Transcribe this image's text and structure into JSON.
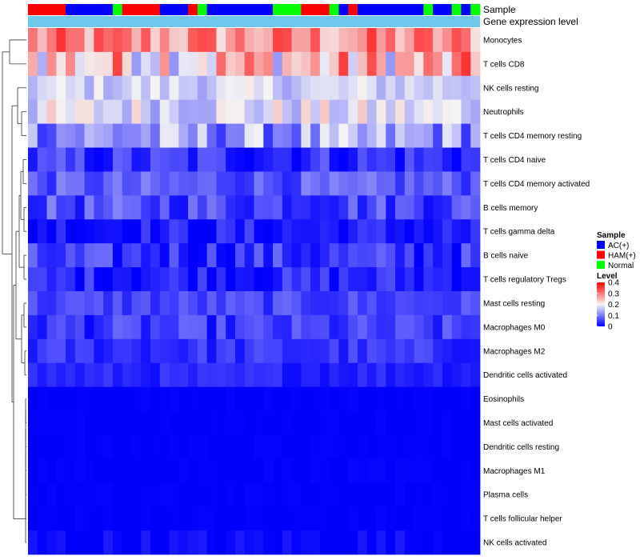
{
  "chart_data": {
    "type": "heatmap",
    "title": "",
    "n_samples": 48,
    "colors": {
      "ac": "#0000ff",
      "ham": "#ff0000",
      "normal": "#00ff00",
      "gene_bar": "#6fc8ec",
      "low": "#0000ff",
      "mid": "#f5f5f5",
      "high": "#ff0000"
    },
    "sample_annotation": {
      "label": "Sample",
      "values": [
        "HAM(+)",
        "HAM(+)",
        "HAM(+)",
        "HAM(+)",
        "AC(+)",
        "AC(+)",
        "AC(+)",
        "AC(+)",
        "AC(+)",
        "Normal",
        "HAM(+)",
        "HAM(+)",
        "HAM(+)",
        "HAM(+)",
        "AC(+)",
        "AC(+)",
        "AC(+)",
        "HAM(+)",
        "Normal",
        "AC(+)",
        "AC(+)",
        "AC(+)",
        "AC(+)",
        "AC(+)",
        "AC(+)",
        "AC(+)",
        "Normal",
        "Normal",
        "Normal",
        "HAM(+)",
        "HAM(+)",
        "HAM(+)",
        "Normal",
        "AC(+)",
        "HAM(+)",
        "AC(+)",
        "AC(+)",
        "AC(+)",
        "AC(+)",
        "AC(+)",
        "AC(+)",
        "AC(+)",
        "Normal",
        "AC(+)",
        "AC(+)",
        "Normal",
        "AC(+)",
        "Normal"
      ]
    },
    "gene_annotation": {
      "label": "Gene expression level"
    },
    "legend": {
      "sample_title": "Sample",
      "sample_entries": [
        {
          "label": "AC(+)",
          "color": "#0000ff"
        },
        {
          "label": "HAM(+)",
          "color": "#ff0000"
        },
        {
          "label": "Normal",
          "color": "#00ff00"
        }
      ],
      "level_title": "Level",
      "level_ticks": [
        "0.4",
        "0.3",
        "0.2",
        "0.1",
        "0"
      ],
      "level_range": [
        0,
        0.4
      ]
    },
    "rows": [
      {
        "name": "Monocytes",
        "base": 0.28,
        "amp": 0.08
      },
      {
        "name": "T cells CD8",
        "base": 0.24,
        "amp": 0.12
      },
      {
        "name": "NK cells resting",
        "base": 0.17,
        "amp": 0.04
      },
      {
        "name": "Neutrophils",
        "base": 0.18,
        "amp": 0.06
      },
      {
        "name": "T cells CD4 memory resting",
        "base": 0.12,
        "amp": 0.08
      },
      {
        "name": "T cells CD4 naive",
        "base": 0.04,
        "amp": 0.05
      },
      {
        "name": "T cells CD4 memory activated",
        "base": 0.07,
        "amp": 0.04
      },
      {
        "name": "B cells memory",
        "base": 0.06,
        "amp": 0.05
      },
      {
        "name": "T cells gamma delta",
        "base": 0.02,
        "amp": 0.04
      },
      {
        "name": "B cells naive",
        "base": 0.04,
        "amp": 0.05
      },
      {
        "name": "T cells regulatory  Tregs",
        "base": 0.03,
        "amp": 0.04
      },
      {
        "name": "Mast cells resting",
        "base": 0.055,
        "amp": 0.03
      },
      {
        "name": "Macrophages M0",
        "base": 0.045,
        "amp": 0.04
      },
      {
        "name": "Macrophages M2",
        "base": 0.04,
        "amp": 0.03
      },
      {
        "name": "Dendritic cells activated",
        "base": 0.03,
        "amp": 0.02
      },
      {
        "name": "Eosinophils",
        "base": 0.0,
        "amp": 0.004
      },
      {
        "name": "Mast cells activated",
        "base": 0.0,
        "amp": 0.004
      },
      {
        "name": "Dendritic cells resting",
        "base": 0.0,
        "amp": 0.004
      },
      {
        "name": "Macrophages M1",
        "base": 0.0,
        "amp": 0.006
      },
      {
        "name": "Plasma cells",
        "base": 0.0,
        "amp": 0.004
      },
      {
        "name": "T cells follicular helper",
        "base": 0.0,
        "amp": 0.004
      },
      {
        "name": "NK cells activated",
        "base": 0.005,
        "amp": 0.02
      }
    ]
  }
}
